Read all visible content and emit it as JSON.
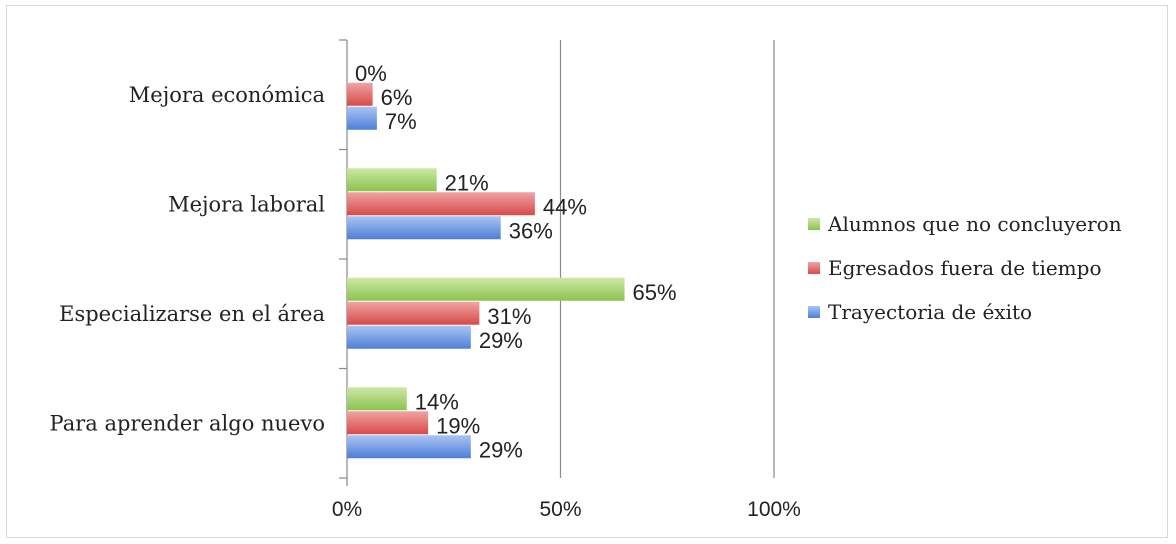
{
  "chart_data": {
    "type": "bar",
    "orientation": "horizontal",
    "categories": [
      "Mejora económica",
      "Mejora laboral",
      "Especializarse en el área",
      "Para aprender algo nuevo"
    ],
    "series": [
      {
        "name": "Alumnos que no concluyeron",
        "color": "#9ACD5C",
        "values": [
          0,
          21,
          65,
          14
        ],
        "labels": [
          "0%",
          "21%",
          "65%",
          "14%"
        ]
      },
      {
        "name": "Egresados fuera de tiempo",
        "color": "#E05A5A",
        "values": [
          6,
          44,
          31,
          19
        ],
        "labels": [
          "6%",
          "44%",
          "31%",
          "19%"
        ]
      },
      {
        "name": "Trayectoria de éxito",
        "color": "#5F8FE0",
        "values": [
          7,
          36,
          29,
          29
        ],
        "labels": [
          "7%",
          "36%",
          "29%",
          "29%"
        ]
      }
    ],
    "x_ticks": [
      "0%",
      "50%",
      "100%"
    ],
    "xlim": [
      0,
      100
    ],
    "grid": true,
    "legend_position": "right"
  }
}
